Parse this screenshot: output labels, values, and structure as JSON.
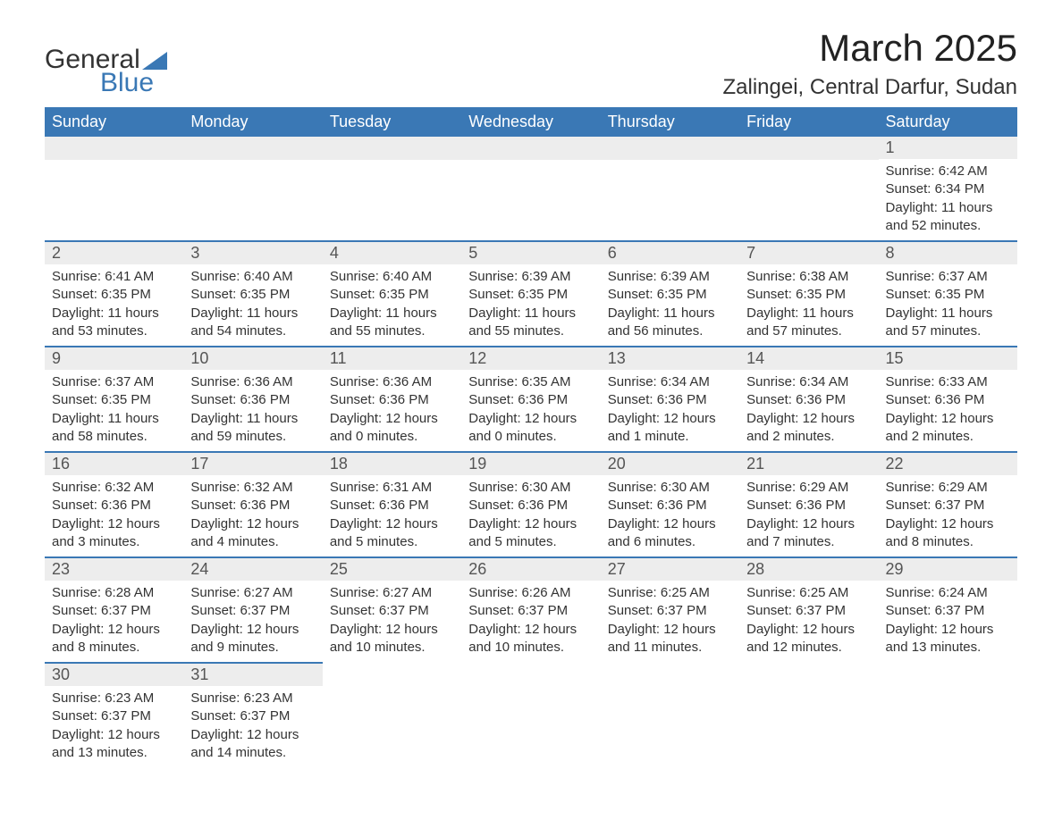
{
  "brand": {
    "word1": "General",
    "word2": "Blue",
    "accent_color": "#3a78b5"
  },
  "title": "March 2025",
  "location": "Zalingei, Central Darfur, Sudan",
  "colors": {
    "header_bg": "#3a78b5",
    "header_text": "#ffffff",
    "daynum_bg": "#ededed",
    "daynum_text": "#555555",
    "cell_text": "#333333",
    "row_divider": "#3a78b5",
    "background": "#ffffff"
  },
  "typography": {
    "month_title_fontsize": 42,
    "location_fontsize": 24,
    "dayheader_fontsize": 18,
    "daynum_fontsize": 18,
    "body_fontsize": 15
  },
  "day_headers": [
    "Sunday",
    "Monday",
    "Tuesday",
    "Wednesday",
    "Thursday",
    "Friday",
    "Saturday"
  ],
  "weeks": [
    [
      null,
      null,
      null,
      null,
      null,
      null,
      {
        "day": "1",
        "sunrise": "Sunrise: 6:42 AM",
        "sunset": "Sunset: 6:34 PM",
        "daylight1": "Daylight: 11 hours",
        "daylight2": "and 52 minutes."
      }
    ],
    [
      {
        "day": "2",
        "sunrise": "Sunrise: 6:41 AM",
        "sunset": "Sunset: 6:35 PM",
        "daylight1": "Daylight: 11 hours",
        "daylight2": "and 53 minutes."
      },
      {
        "day": "3",
        "sunrise": "Sunrise: 6:40 AM",
        "sunset": "Sunset: 6:35 PM",
        "daylight1": "Daylight: 11 hours",
        "daylight2": "and 54 minutes."
      },
      {
        "day": "4",
        "sunrise": "Sunrise: 6:40 AM",
        "sunset": "Sunset: 6:35 PM",
        "daylight1": "Daylight: 11 hours",
        "daylight2": "and 55 minutes."
      },
      {
        "day": "5",
        "sunrise": "Sunrise: 6:39 AM",
        "sunset": "Sunset: 6:35 PM",
        "daylight1": "Daylight: 11 hours",
        "daylight2": "and 55 minutes."
      },
      {
        "day": "6",
        "sunrise": "Sunrise: 6:39 AM",
        "sunset": "Sunset: 6:35 PM",
        "daylight1": "Daylight: 11 hours",
        "daylight2": "and 56 minutes."
      },
      {
        "day": "7",
        "sunrise": "Sunrise: 6:38 AM",
        "sunset": "Sunset: 6:35 PM",
        "daylight1": "Daylight: 11 hours",
        "daylight2": "and 57 minutes."
      },
      {
        "day": "8",
        "sunrise": "Sunrise: 6:37 AM",
        "sunset": "Sunset: 6:35 PM",
        "daylight1": "Daylight: 11 hours",
        "daylight2": "and 57 minutes."
      }
    ],
    [
      {
        "day": "9",
        "sunrise": "Sunrise: 6:37 AM",
        "sunset": "Sunset: 6:35 PM",
        "daylight1": "Daylight: 11 hours",
        "daylight2": "and 58 minutes."
      },
      {
        "day": "10",
        "sunrise": "Sunrise: 6:36 AM",
        "sunset": "Sunset: 6:36 PM",
        "daylight1": "Daylight: 11 hours",
        "daylight2": "and 59 minutes."
      },
      {
        "day": "11",
        "sunrise": "Sunrise: 6:36 AM",
        "sunset": "Sunset: 6:36 PM",
        "daylight1": "Daylight: 12 hours",
        "daylight2": "and 0 minutes."
      },
      {
        "day": "12",
        "sunrise": "Sunrise: 6:35 AM",
        "sunset": "Sunset: 6:36 PM",
        "daylight1": "Daylight: 12 hours",
        "daylight2": "and 0 minutes."
      },
      {
        "day": "13",
        "sunrise": "Sunrise: 6:34 AM",
        "sunset": "Sunset: 6:36 PM",
        "daylight1": "Daylight: 12 hours",
        "daylight2": "and 1 minute."
      },
      {
        "day": "14",
        "sunrise": "Sunrise: 6:34 AM",
        "sunset": "Sunset: 6:36 PM",
        "daylight1": "Daylight: 12 hours",
        "daylight2": "and 2 minutes."
      },
      {
        "day": "15",
        "sunrise": "Sunrise: 6:33 AM",
        "sunset": "Sunset: 6:36 PM",
        "daylight1": "Daylight: 12 hours",
        "daylight2": "and 2 minutes."
      }
    ],
    [
      {
        "day": "16",
        "sunrise": "Sunrise: 6:32 AM",
        "sunset": "Sunset: 6:36 PM",
        "daylight1": "Daylight: 12 hours",
        "daylight2": "and 3 minutes."
      },
      {
        "day": "17",
        "sunrise": "Sunrise: 6:32 AM",
        "sunset": "Sunset: 6:36 PM",
        "daylight1": "Daylight: 12 hours",
        "daylight2": "and 4 minutes."
      },
      {
        "day": "18",
        "sunrise": "Sunrise: 6:31 AM",
        "sunset": "Sunset: 6:36 PM",
        "daylight1": "Daylight: 12 hours",
        "daylight2": "and 5 minutes."
      },
      {
        "day": "19",
        "sunrise": "Sunrise: 6:30 AM",
        "sunset": "Sunset: 6:36 PM",
        "daylight1": "Daylight: 12 hours",
        "daylight2": "and 5 minutes."
      },
      {
        "day": "20",
        "sunrise": "Sunrise: 6:30 AM",
        "sunset": "Sunset: 6:36 PM",
        "daylight1": "Daylight: 12 hours",
        "daylight2": "and 6 minutes."
      },
      {
        "day": "21",
        "sunrise": "Sunrise: 6:29 AM",
        "sunset": "Sunset: 6:36 PM",
        "daylight1": "Daylight: 12 hours",
        "daylight2": "and 7 minutes."
      },
      {
        "day": "22",
        "sunrise": "Sunrise: 6:29 AM",
        "sunset": "Sunset: 6:37 PM",
        "daylight1": "Daylight: 12 hours",
        "daylight2": "and 8 minutes."
      }
    ],
    [
      {
        "day": "23",
        "sunrise": "Sunrise: 6:28 AM",
        "sunset": "Sunset: 6:37 PM",
        "daylight1": "Daylight: 12 hours",
        "daylight2": "and 8 minutes."
      },
      {
        "day": "24",
        "sunrise": "Sunrise: 6:27 AM",
        "sunset": "Sunset: 6:37 PM",
        "daylight1": "Daylight: 12 hours",
        "daylight2": "and 9 minutes."
      },
      {
        "day": "25",
        "sunrise": "Sunrise: 6:27 AM",
        "sunset": "Sunset: 6:37 PM",
        "daylight1": "Daylight: 12 hours",
        "daylight2": "and 10 minutes."
      },
      {
        "day": "26",
        "sunrise": "Sunrise: 6:26 AM",
        "sunset": "Sunset: 6:37 PM",
        "daylight1": "Daylight: 12 hours",
        "daylight2": "and 10 minutes."
      },
      {
        "day": "27",
        "sunrise": "Sunrise: 6:25 AM",
        "sunset": "Sunset: 6:37 PM",
        "daylight1": "Daylight: 12 hours",
        "daylight2": "and 11 minutes."
      },
      {
        "day": "28",
        "sunrise": "Sunrise: 6:25 AM",
        "sunset": "Sunset: 6:37 PM",
        "daylight1": "Daylight: 12 hours",
        "daylight2": "and 12 minutes."
      },
      {
        "day": "29",
        "sunrise": "Sunrise: 6:24 AM",
        "sunset": "Sunset: 6:37 PM",
        "daylight1": "Daylight: 12 hours",
        "daylight2": "and 13 minutes."
      }
    ],
    [
      {
        "day": "30",
        "sunrise": "Sunrise: 6:23 AM",
        "sunset": "Sunset: 6:37 PM",
        "daylight1": "Daylight: 12 hours",
        "daylight2": "and 13 minutes."
      },
      {
        "day": "31",
        "sunrise": "Sunrise: 6:23 AM",
        "sunset": "Sunset: 6:37 PM",
        "daylight1": "Daylight: 12 hours",
        "daylight2": "and 14 minutes."
      },
      null,
      null,
      null,
      null,
      null
    ]
  ]
}
